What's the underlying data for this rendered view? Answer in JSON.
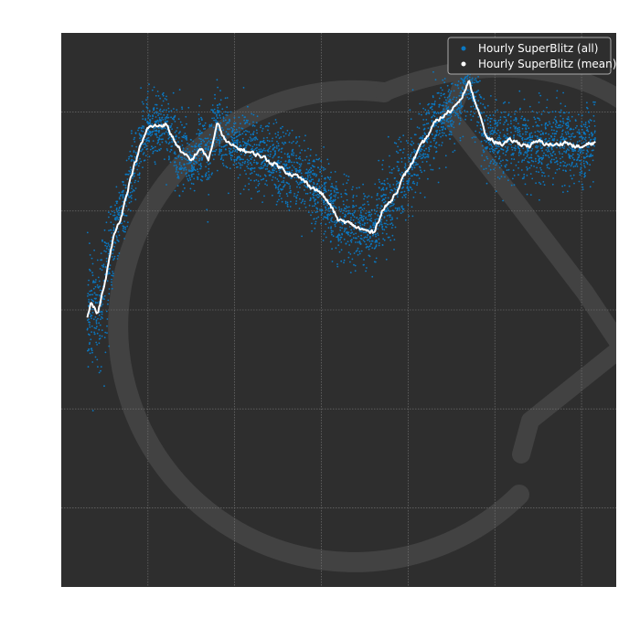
{
  "chart_data": {
    "type": "scatter",
    "title": "",
    "xlabel": "",
    "ylabel": "",
    "xlim": [
      0,
      32
    ],
    "ylim": [
      0,
      2800
    ],
    "xgrid": [
      5,
      10,
      15,
      20,
      25,
      30
    ],
    "ygrid": [
      400,
      900,
      1400,
      1900,
      2400
    ],
    "grid": true,
    "legend_position": "top-right",
    "colors": {
      "background": "#2e2e2e",
      "all": "#0a78c2",
      "mean": "#ffffff",
      "grid": "#7a7a7a",
      "watermark": "#424242"
    },
    "series": [
      {
        "name": "Hourly SuperBlitz (all)",
        "kind": "scatter",
        "spread": 95,
        "note_points": "dense cloud around mean curve"
      },
      {
        "name": "Hourly SuperBlitz (mean)",
        "kind": "line",
        "x": [
          1.5,
          1.7,
          1.9,
          2.1,
          2.5,
          3,
          3.5,
          4,
          4.5,
          5,
          5.5,
          6,
          6.5,
          7,
          7.5,
          8,
          8.5,
          9,
          9.5,
          10,
          10.5,
          11,
          11.5,
          12,
          12.5,
          13,
          13.5,
          14,
          14.5,
          15,
          15.5,
          16,
          16.5,
          17,
          17.5,
          18,
          18.5,
          19,
          19.5,
          20,
          20.5,
          21,
          21.5,
          22,
          22.5,
          23,
          23.5,
          24,
          24.5,
          25,
          25.5,
          26,
          26.5,
          27,
          27.5,
          28,
          28.5,
          29,
          29.5,
          30,
          30.5,
          30.8
        ],
        "y": [
          1370,
          1440,
          1410,
          1380,
          1530,
          1760,
          1890,
          2070,
          2210,
          2320,
          2330,
          2340,
          2260,
          2190,
          2150,
          2220,
          2160,
          2340,
          2250,
          2220,
          2210,
          2190,
          2180,
          2150,
          2130,
          2100,
          2080,
          2050,
          2020,
          1990,
          1930,
          1850,
          1840,
          1820,
          1800,
          1790,
          1900,
          1950,
          2030,
          2110,
          2190,
          2260,
          2340,
          2380,
          2410,
          2470,
          2550,
          2420,
          2270,
          2250,
          2240,
          2255,
          2240,
          2230,
          2250,
          2240,
          2230,
          2250,
          2230,
          2220,
          2240,
          2250
        ]
      }
    ]
  }
}
